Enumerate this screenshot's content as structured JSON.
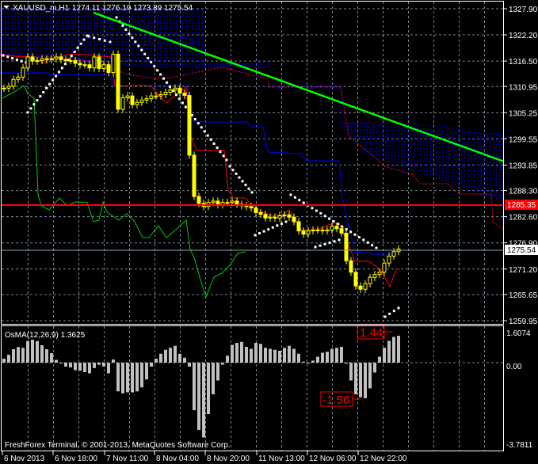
{
  "header": {
    "symbol": "XAUUSD_m,H1",
    "ohlc": "1274.11 1276.19 1273.89 1275.54"
  },
  "copyright": "FreshForex Terminal, © 2001-2013, MetaQuotes Software Corp.",
  "colors": {
    "background": "#000000",
    "candle": "#ffff00",
    "trendline": "#00ff00",
    "level": "#ff0000",
    "kijun": "#0000ff",
    "tenkan": "#ff0000",
    "chikou": "#00cc00",
    "sar": "#ffffff",
    "histogram": "#c0c0c0",
    "grid": "#778899"
  },
  "chart_data": [
    {
      "type": "candlestick",
      "title": "XAUUSD_m,H1",
      "ylim": [
        1259.95,
        1327.9
      ],
      "y_ticks": [
        "1327.90",
        "1322.20",
        "1316.50",
        "1310.95",
        "1305.25",
        "1299.55",
        "1293.85",
        "1288.30",
        "1282.60",
        "1276.90",
        "1271.20",
        "1265.65",
        "1259.95"
      ],
      "x_ticks": [
        "6 Nov 2013",
        "6 Nov 18:00",
        "7 Nov 11:00",
        "8 Nov 04:00",
        "8 Nov 20:00",
        "11 Nov 13:00",
        "12 Nov 06:00",
        "12 Nov 22:00"
      ],
      "horizontal_level": {
        "label": "1285.35",
        "value": 1285.35
      },
      "current_price": {
        "label": "1275.54",
        "value": 1275.54
      },
      "closes": [
        1310.6,
        1311,
        1312.5,
        1313,
        1315,
        1317.4,
        1316.5,
        1316.6,
        1317,
        1316.8,
        1317,
        1317.4,
        1316.8,
        1316.6,
        1316.6,
        1316,
        1315.7,
        1315.7,
        1315,
        1317.4,
        1314.9,
        1315.7,
        1314,
        1318,
        1306,
        1308.5,
        1308.9,
        1307,
        1307.5,
        1308,
        1308.3,
        1308.9,
        1308.9,
        1309.2,
        1309.7,
        1310.2,
        1310.6,
        1309.5,
        1309,
        1296,
        1287,
        1285.5,
        1284.8,
        1285.7,
        1286,
        1285.2,
        1285.7,
        1285.7,
        1286,
        1285.3,
        1285,
        1284.8,
        1284.5,
        1283.5,
        1283.1,
        1282.3,
        1282.5,
        1282.3,
        1282.8,
        1283,
        1282.5,
        1281.5,
        1279.5,
        1278.8,
        1279.5,
        1279.7,
        1279.7,
        1279.5,
        1279.7,
        1280.5,
        1280,
        1279,
        1273,
        1270.5,
        1267.5,
        1266.8,
        1268,
        1269.4,
        1270,
        1270.5,
        1272.5,
        1274,
        1275,
        1275.54
      ],
      "grid": true
    },
    {
      "type": "bar",
      "title": "OsMA(12,26,9) 1.3625",
      "ylim": [
        -3.7811,
        1.6074
      ],
      "y_ticks": [
        "1.6074",
        "0.00",
        "-3.7811"
      ],
      "annotations": [
        "1.44",
        "-1.56"
      ],
      "values": [
        0.2,
        0.4,
        0.68,
        0.79,
        0.75,
        1.09,
        1.16,
        1.09,
        0.88,
        0.68,
        0.48,
        0.14,
        -0.04,
        -0.2,
        -0.24,
        -0.38,
        -0.41,
        -0.48,
        -0.54,
        -0.27,
        -0.11,
        -0.2,
        -0.54,
        0.16,
        -1.45,
        -1.55,
        -1.5,
        -1.5,
        -1.45,
        -1.25,
        -0.85,
        -0.2,
        0.2,
        0.45,
        0.65,
        0.75,
        0.85,
        0.45,
        0.25,
        -0.2,
        -2.4,
        -3.4,
        -3.78,
        -2.6,
        -1.6,
        -0.9,
        -0.1,
        0.35,
        0.9,
        1.0,
        1.05,
        0.8,
        0.7,
        1.0,
        0.95,
        0.75,
        0.7,
        0.65,
        0.6,
        0.75,
        0.85,
        0.7,
        0.45,
        0.05,
        -0.05,
        0.1,
        0.3,
        0.5,
        0.55,
        0.7,
        0.75,
        0.8,
        -0.05,
        -0.9,
        -1.6,
        -1.75,
        -1.8,
        -1.3,
        -0.5,
        0.3,
        0.75,
        1.1,
        1.3,
        1.36
      ],
      "grid": true
    }
  ]
}
